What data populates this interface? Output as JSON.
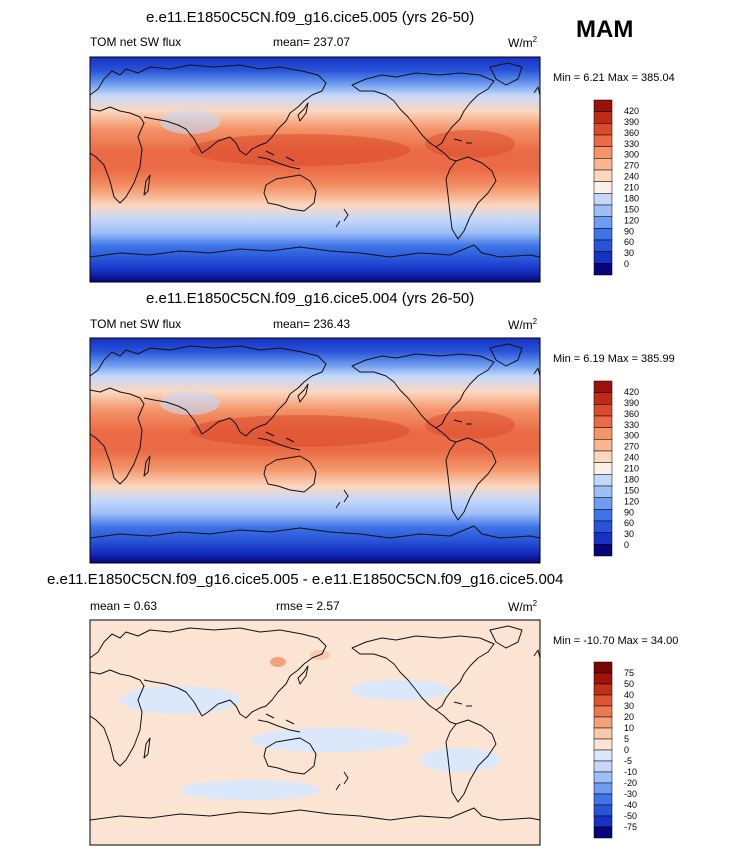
{
  "season": "MAM",
  "colors": {
    "sw_palette": [
      "#08047a",
      "#1631c4",
      "#2854d8",
      "#3d74e8",
      "#6e9cf0",
      "#9ebff6",
      "#c5d8fa",
      "#fbf1e8",
      "#fbd7c0",
      "#f8b791",
      "#f49469",
      "#ea6b45",
      "#db4a2b",
      "#be2a16",
      "#9c120a"
    ],
    "diff_palette": [
      "#08047a",
      "#1631c4",
      "#2854d8",
      "#3d74e8",
      "#6e9cf0",
      "#9ebff6",
      "#c5d8fa",
      "#dbe7fb",
      "#fbe4d4",
      "#f9c9ab",
      "#f5a27c",
      "#ec7a51",
      "#de5533",
      "#c33018",
      "#a3120a",
      "#7a0503"
    ]
  },
  "chart_data": [
    {
      "type": "heatmap",
      "title": "e.e11.E1850C5CN.f09_g16.cice5.005 (yrs 26-50)",
      "left_label": "TOM net SW flux",
      "center_label": "mean= 237.07",
      "units": "W/m",
      "units_sup": "2",
      "minmax": "Min =   6.21  Max = 385.04",
      "colorbar_levels": [
        "420",
        "390",
        "360",
        "330",
        "300",
        "270",
        "240",
        "210",
        "180",
        "150",
        "120",
        "90",
        "60",
        "30",
        "0"
      ],
      "mean": 237.07,
      "min": 6.21,
      "max": 385.04
    },
    {
      "type": "heatmap",
      "title": "e.e11.E1850C5CN.f09_g16.cice5.004 (yrs 26-50)",
      "left_label": "TOM net SW flux",
      "center_label": "mean= 236.43",
      "units": "W/m",
      "units_sup": "2",
      "minmax": "Min =   6.19  Max = 385.99",
      "colorbar_levels": [
        "420",
        "390",
        "360",
        "330",
        "300",
        "270",
        "240",
        "210",
        "180",
        "150",
        "120",
        "90",
        "60",
        "30",
        "0"
      ],
      "mean": 236.43,
      "min": 6.19,
      "max": 385.99
    },
    {
      "type": "heatmap",
      "title": "e.e11.E1850C5CN.f09_g16.cice5.005 - e.e11.E1850C5CN.f09_g16.cice5.004",
      "left_label": "mean =    0.63",
      "center_label": "rmse =    2.57",
      "units": "W/m",
      "units_sup": "2",
      "minmax": "Min = -10.70  Max =  34.00",
      "colorbar_levels": [
        "75",
        "50",
        "40",
        "30",
        "20",
        "10",
        "5",
        "0",
        "-5",
        "-10",
        "-20",
        "-30",
        "-40",
        "-50",
        "-75"
      ],
      "mean": 0.63,
      "rmse": 2.57,
      "min": -10.7,
      "max": 34.0
    }
  ]
}
